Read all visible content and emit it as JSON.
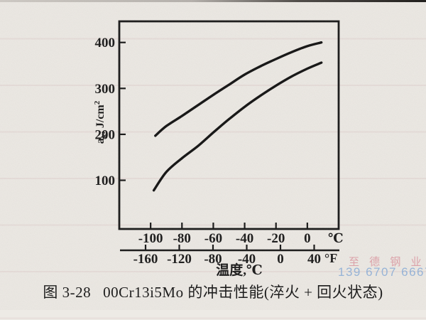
{
  "watermark": {
    "company": "至 德 钢 业",
    "phone": "139 6707 6667",
    "company_color": "#dd97a1",
    "phone_color": "#8fb1da"
  },
  "caption": {
    "label": "图 3-28",
    "title": "00Cr13i5Mo 的冲击性能(淬火 + 回火状态)"
  },
  "chart_data": {
    "type": "line",
    "title": "",
    "xlabel": "温度,℃",
    "ylabel": "ak, J/cm2",
    "ylabel_parts": {
      "base": "a",
      "sub": "k",
      "mid": ", J/cm",
      "sup": "2"
    },
    "x_axis_celsius": {
      "unit": "℃",
      "ticks": [
        -100,
        -80,
        -60,
        -40,
        -20,
        0
      ],
      "xlim": [
        -120,
        20
      ]
    },
    "x_axis_fahrenheit": {
      "unit": "°F",
      "ticks": [
        -160,
        -120,
        -80,
        -40,
        0,
        40
      ]
    },
    "y_axis": {
      "ticks": [
        100,
        200,
        300,
        400
      ],
      "ylim": [
        -6,
        446
      ]
    },
    "grid": false,
    "legend_position": "none",
    "line_color": "#151515",
    "series": [
      {
        "name": "upper-impact-curve",
        "points": [
          [
            -97,
            197
          ],
          [
            -90,
            218
          ],
          [
            -80,
            240
          ],
          [
            -70,
            263
          ],
          [
            -60,
            286
          ],
          [
            -50,
            308
          ],
          [
            -40,
            330
          ],
          [
            -30,
            348
          ],
          [
            -20,
            364
          ],
          [
            -10,
            379
          ],
          [
            0,
            392
          ],
          [
            9,
            400
          ]
        ]
      },
      {
        "name": "lower-impact-curve",
        "points": [
          [
            -98,
            78
          ],
          [
            -90,
            118
          ],
          [
            -80,
            148
          ],
          [
            -70,
            174
          ],
          [
            -60,
            204
          ],
          [
            -50,
            233
          ],
          [
            -40,
            260
          ],
          [
            -30,
            284
          ],
          [
            -20,
            306
          ],
          [
            -10,
            326
          ],
          [
            0,
            343
          ],
          [
            9,
            356
          ]
        ]
      }
    ]
  }
}
